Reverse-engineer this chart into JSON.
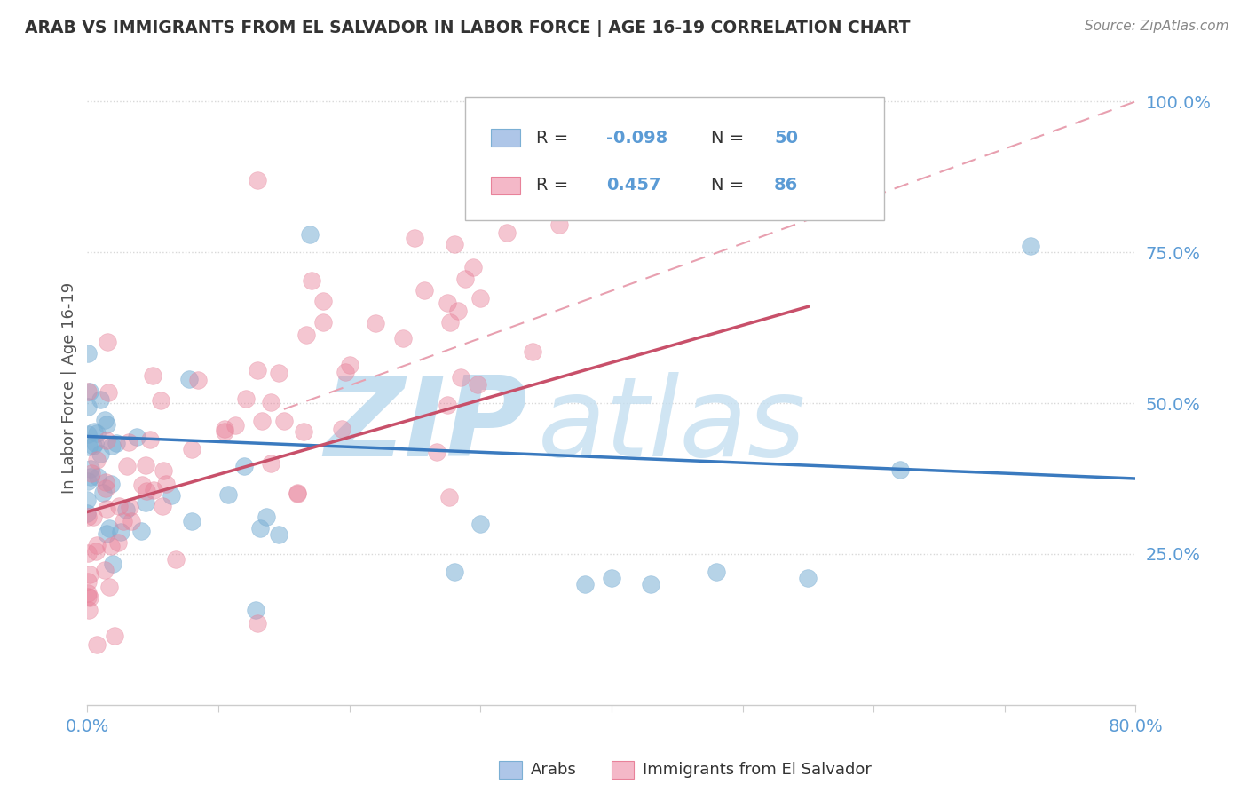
{
  "title": "ARAB VS IMMIGRANTS FROM EL SALVADOR IN LABOR FORCE | AGE 16-19 CORRELATION CHART",
  "source": "Source: ZipAtlas.com",
  "ylabel": "In Labor Force | Age 16-19",
  "arab_color": "#7bafd4",
  "arab_fill": "#aec6e8",
  "salvador_color": "#e8829a",
  "salvador_fill": "#f4b8c8",
  "trend_arab_color": "#3a7abf",
  "trend_salvador_color": "#c8506a",
  "dashed_line_color": "#c8a0b0",
  "watermark_zip": "ZIP",
  "watermark_atlas": "atlas",
  "watermark_color_zip": "#c5dff0",
  "watermark_color_atlas": "#c5dff0",
  "xlim": [
    0.0,
    0.8
  ],
  "ylim": [
    0.0,
    1.05
  ],
  "background_color": "#ffffff",
  "grid_color": "#d8d8d8",
  "axis_color": "#5b9bd5",
  "legend_R_arab": "-0.098",
  "legend_N_arab": "50",
  "legend_R_salvador": "0.457",
  "legend_N_salvador": "86"
}
